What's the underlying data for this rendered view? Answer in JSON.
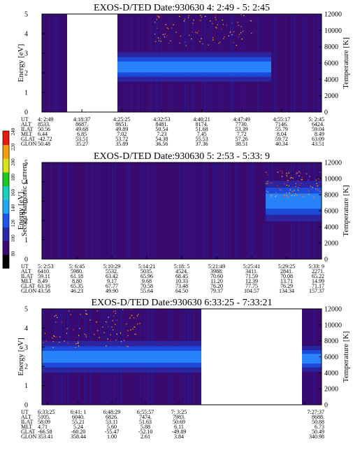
{
  "colors": {
    "background": "#3a0a6e",
    "band_core": "#2a8cff",
    "band_edge": "#1d4fe0",
    "speckle": "#ff8c1a",
    "gap": "#ffffff"
  },
  "colorbar": {
    "label": "Second Harmonic Current",
    "ticks": [
      "80",
      "100",
      "120",
      "140",
      "160",
      "180",
      "200",
      "220",
      "240"
    ],
    "colors": [
      "#000000",
      "#3a0a6e",
      "#2a2aa8",
      "#1f55e8",
      "#23a8f0",
      "#18d0c0",
      "#1ec81e",
      "#d8e418",
      "#f2a010",
      "#e81a10"
    ]
  },
  "chart_data": [
    {
      "type": "heatmap",
      "title": "EXOS-D/TED   Date:930630  4: 2:49 - 5: 2:45",
      "ylabel": "Energy [eV]",
      "ylabel_right": "Temperature [K]",
      "ylim": [
        0,
        5
      ],
      "ylim_right": [
        0,
        12000
      ],
      "yticks": [
        "0",
        "1",
        "2",
        "3",
        "4",
        "5"
      ],
      "yticks_right": [
        "0",
        "2000",
        "4000",
        "6000",
        "8000",
        "10000",
        "12000"
      ],
      "band": {
        "center_ev": 2.3,
        "width_ev": 1.0,
        "start": 0.1,
        "end": 0.82
      },
      "speckle_region": {
        "x0": 0.4,
        "x1": 0.75,
        "e0": 3.4,
        "e1": 5.0
      },
      "gaps": [
        [
          0.0,
          0.0
        ],
        [
          0.09,
          0.27
        ]
      ],
      "info_rows": [
        {
          "label": "UT",
          "values": [
            "4: 2:49",
            "4:18:37",
            "4:25:25",
            "4:32:53",
            "4:40:21",
            "4:47:49",
            "4:55:17",
            "5: 2:45"
          ]
        },
        {
          "label": "ALT",
          "values": [
            "8533.",
            "8687.",
            "8651.",
            "8481.",
            "8174.",
            "7730.",
            "7146.",
            "6424."
          ]
        },
        {
          "label": "ILAT",
          "values": [
            "50.56",
            "49.68",
            "49.89",
            "50.54",
            "51.68",
            "53.39",
            "55.79",
            "59.04"
          ]
        },
        {
          "label": "MLT",
          "values": [
            "6.44",
            "6.85",
            "7.02",
            "7.23",
            "7.45",
            "7.72",
            "8.04",
            "8.49"
          ]
        },
        {
          "label": "GLAT",
          "values": [
            "-42.72",
            "53.51",
            "53.72",
            "54.38",
            "55.53",
            "57.26",
            "59.72",
            "63.09"
          ]
        },
        {
          "label": "GLON",
          "values": [
            "50.48",
            "35.27",
            "35.89",
            "36.56",
            "37.36",
            "38.51",
            "40.34",
            "43.51"
          ]
        }
      ]
    },
    {
      "type": "heatmap",
      "title": "EXOS-D/TED   Date:930630  5: 2:53 - 5:33: 9",
      "ylabel": "Energy [eV]",
      "ylabel_right": "Temperature [K]",
      "ylim": [
        0,
        5
      ],
      "ylim_right": [
        0,
        12000
      ],
      "yticks": [
        "0",
        "1",
        "2",
        "3",
        "4",
        "5"
      ],
      "yticks_right": [
        "0",
        "2000",
        "4000",
        "6000",
        "8000",
        "10000",
        "12000"
      ],
      "band": {
        "center_ev": 3.0,
        "width_ev": 1.4,
        "start": 0.8,
        "end": 1.0
      },
      "speckle_region": {
        "x0": 0.8,
        "x1": 1.0,
        "e0": 3.2,
        "e1": 4.6
      },
      "gaps": [],
      "info_rows": [
        {
          "label": "UT",
          "values": [
            "5: 2:53",
            "5: 6:45",
            "5:10:29",
            "5:14:21",
            "5:18: 5",
            "5:21:49",
            "5:25:41",
            "5:29:25",
            "5:33: 9"
          ]
        },
        {
          "label": "ALT",
          "values": [
            "6410.",
            "5980.",
            "5532.",
            "5035.",
            "4524.",
            "3988.",
            "3411.",
            "2841.",
            "2271."
          ]
        },
        {
          "label": "ILAT",
          "values": [
            "59.11",
            "61.18",
            "63.42",
            "65.96",
            "68.45",
            "70.60",
            "71.59",
            "70.08",
            "65.22"
          ]
        },
        {
          "label": "MLT",
          "values": [
            "8.49",
            "8.80",
            "9.17",
            "9.68",
            "10.33",
            "11.20",
            "12.39",
            "13.71",
            "14.99"
          ]
        },
        {
          "label": "GLAT",
          "values": [
            "63.16",
            "65.35",
            "67.77",
            "70.58",
            "73.48",
            "76.20",
            "77.75",
            "76.29",
            "71.17"
          ]
        },
        {
          "label": "GLON",
          "values": [
            "43.58",
            "46.23",
            "49.90",
            "55.64",
            "64.50",
            "79.37",
            "104.57",
            "134.34",
            "157.37"
          ]
        }
      ]
    },
    {
      "type": "heatmap",
      "title": "EXOS-D/TED   Date:930630  6:33:25 - 7:33:21",
      "ylabel": "Energy [eV]",
      "ylabel_right": "Temperature [K]",
      "ylim": [
        0,
        5
      ],
      "ylim_right": [
        0,
        12000
      ],
      "yticks": [
        "0",
        "1",
        "2",
        "3",
        "4",
        "5"
      ],
      "yticks_right": [
        "0",
        "2000",
        "4000",
        "6000",
        "8000",
        "10000",
        "12000"
      ],
      "band": {
        "center_ev": 2.5,
        "width_ev": 1.1,
        "start": 0.0,
        "end": 0.57
      },
      "band2": {
        "center_ev": 2.4,
        "width_ev": 0.9,
        "start": 0.93,
        "end": 1.0
      },
      "speckle_region": {
        "x0": 0.0,
        "x1": 0.35,
        "e0": 3.0,
        "e1": 5.0
      },
      "gaps": [
        [
          0.57,
          0.93
        ]
      ],
      "info_rows": [
        {
          "label": "UT",
          "values": [
            "6:33:25",
            "6:41: 1",
            "6:48:29",
            "6:55:57",
            "7: 3:25",
            "7:27:37"
          ]
        },
        {
          "label": "ALT",
          "values": [
            "5105.",
            "6040.",
            "6826.",
            "7474.",
            "7983.",
            "8688."
          ]
        },
        {
          "label": "ILAT",
          "values": [
            "58.09",
            "55.21",
            "53.11",
            "51.63",
            "50.69",
            "50.88"
          ]
        },
        {
          "label": "MLT",
          "values": [
            "4.71",
            "5.24",
            "5.60",
            "5.88",
            "6.11",
            "6.73"
          ]
        },
        {
          "label": "GLAT",
          "values": [
            "-66.58",
            "-60.20",
            "-55.47",
            "-52.10",
            "-49.89",
            "50.49"
          ]
        },
        {
          "label": "GLON",
          "values": [
            "353.41",
            "358.44",
            "1.00",
            "2.61",
            "3.84",
            "340.98"
          ]
        }
      ]
    }
  ]
}
